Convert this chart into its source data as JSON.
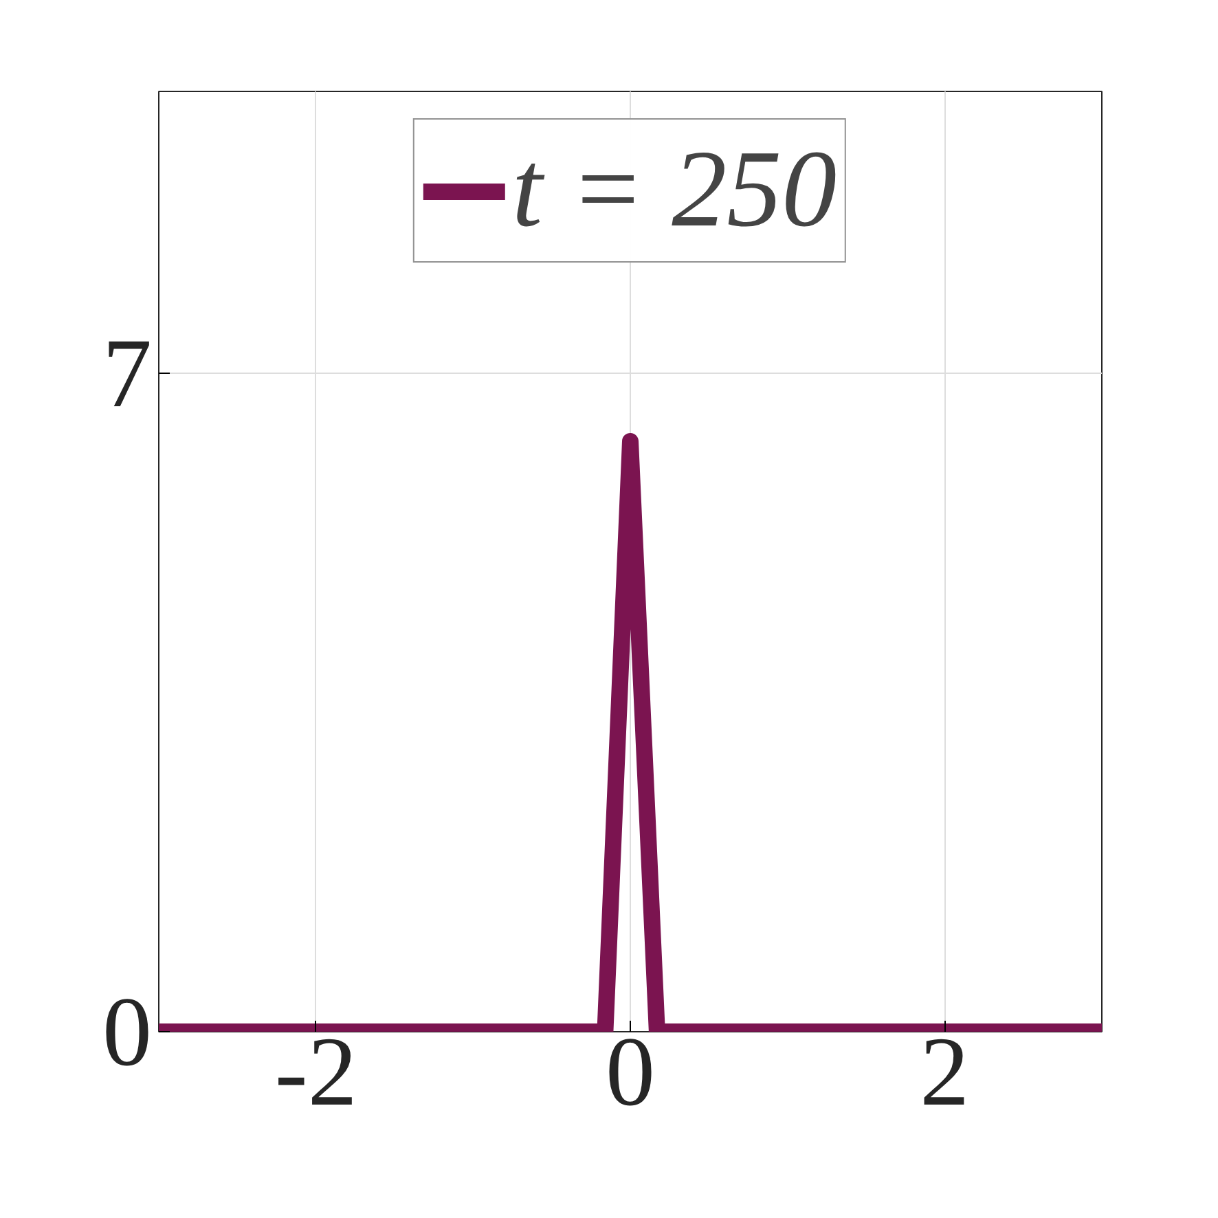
{
  "chart_data": {
    "type": "line",
    "x": [
      -3,
      -0.16,
      0,
      0.17,
      3
    ],
    "series": [
      {
        "name": "t = 250",
        "color": "#7b1450",
        "values": [
          0,
          0,
          6.28,
          0,
          0
        ]
      }
    ],
    "xlim": [
      -3,
      3
    ],
    "ylim": [
      0,
      10
    ],
    "xticks": [
      -2,
      0,
      2
    ],
    "yticks": [
      0,
      7
    ],
    "grid": true,
    "legend": "top",
    "marker": "none",
    "line_style": "solid"
  }
}
